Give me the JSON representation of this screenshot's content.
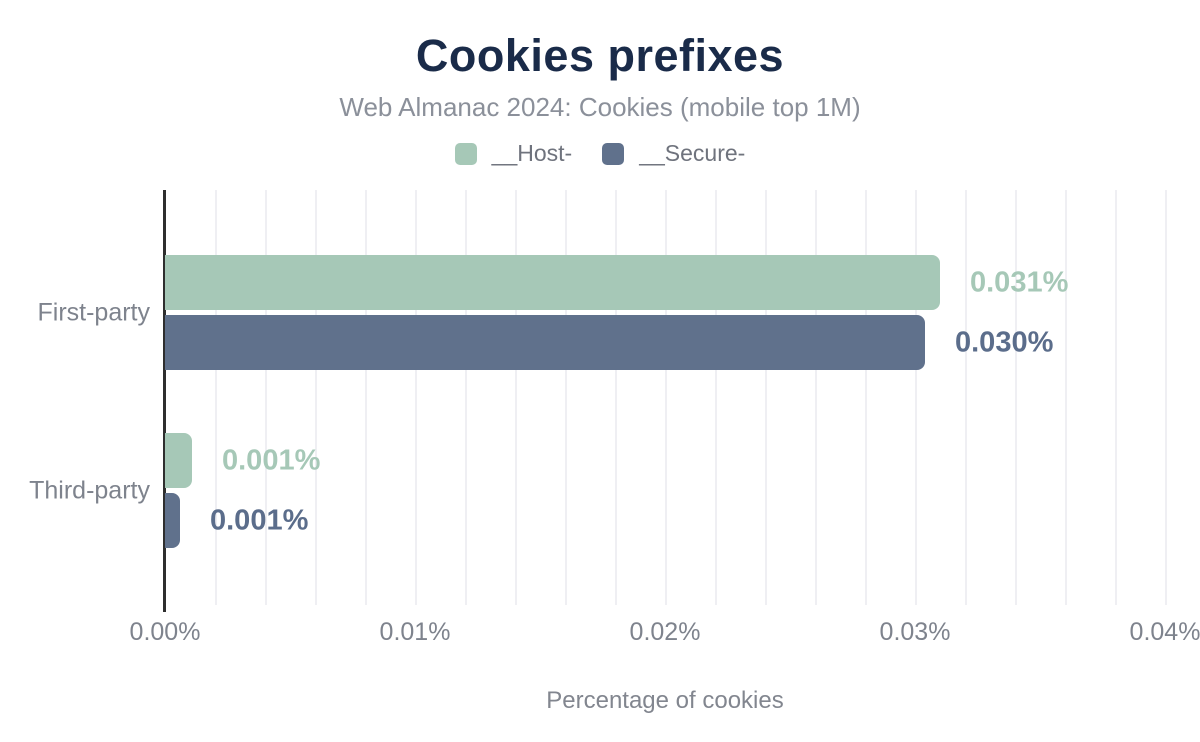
{
  "chart_data": {
    "type": "bar",
    "orientation": "horizontal",
    "title": "Cookies prefixes",
    "subtitle": "Web Almanac 2024: Cookies (mobile top 1M)",
    "categories": [
      "First-party",
      "Third-party"
    ],
    "series": [
      {
        "name": "__Host-",
        "color": "#a6c8b7",
        "label_color": "#a6c8b7",
        "values": [
          0.031,
          0.001
        ],
        "value_labels": [
          "0.031%",
          "0.001%"
        ],
        "bar_length_pct_of_axis": [
          77.5,
          2.7
        ]
      },
      {
        "name": "__Secure-",
        "color": "#60718c",
        "label_color": "#5b6d8b",
        "values": [
          0.03,
          0.001
        ],
        "value_labels": [
          "0.030%",
          "0.001%"
        ],
        "bar_length_pct_of_axis": [
          76.0,
          1.5
        ]
      }
    ],
    "xlabel": "Percentage of cookies",
    "xlim": [
      0,
      0.04
    ],
    "x_ticks": [
      "0.00%",
      "0.01%",
      "0.02%",
      "0.03%",
      "0.04%"
    ],
    "grid_minor_step": 0.002,
    "grid": "vertical-minor-only",
    "legend_position": "top-center"
  },
  "colors": {
    "title": "#1a2b49",
    "subtitle": "#8b909a",
    "legend_text": "#6f737d",
    "axis_text": "#7e838d",
    "axis_line": "#2e2e2e",
    "gridline": "#efeff3",
    "background": "#ffffff"
  }
}
